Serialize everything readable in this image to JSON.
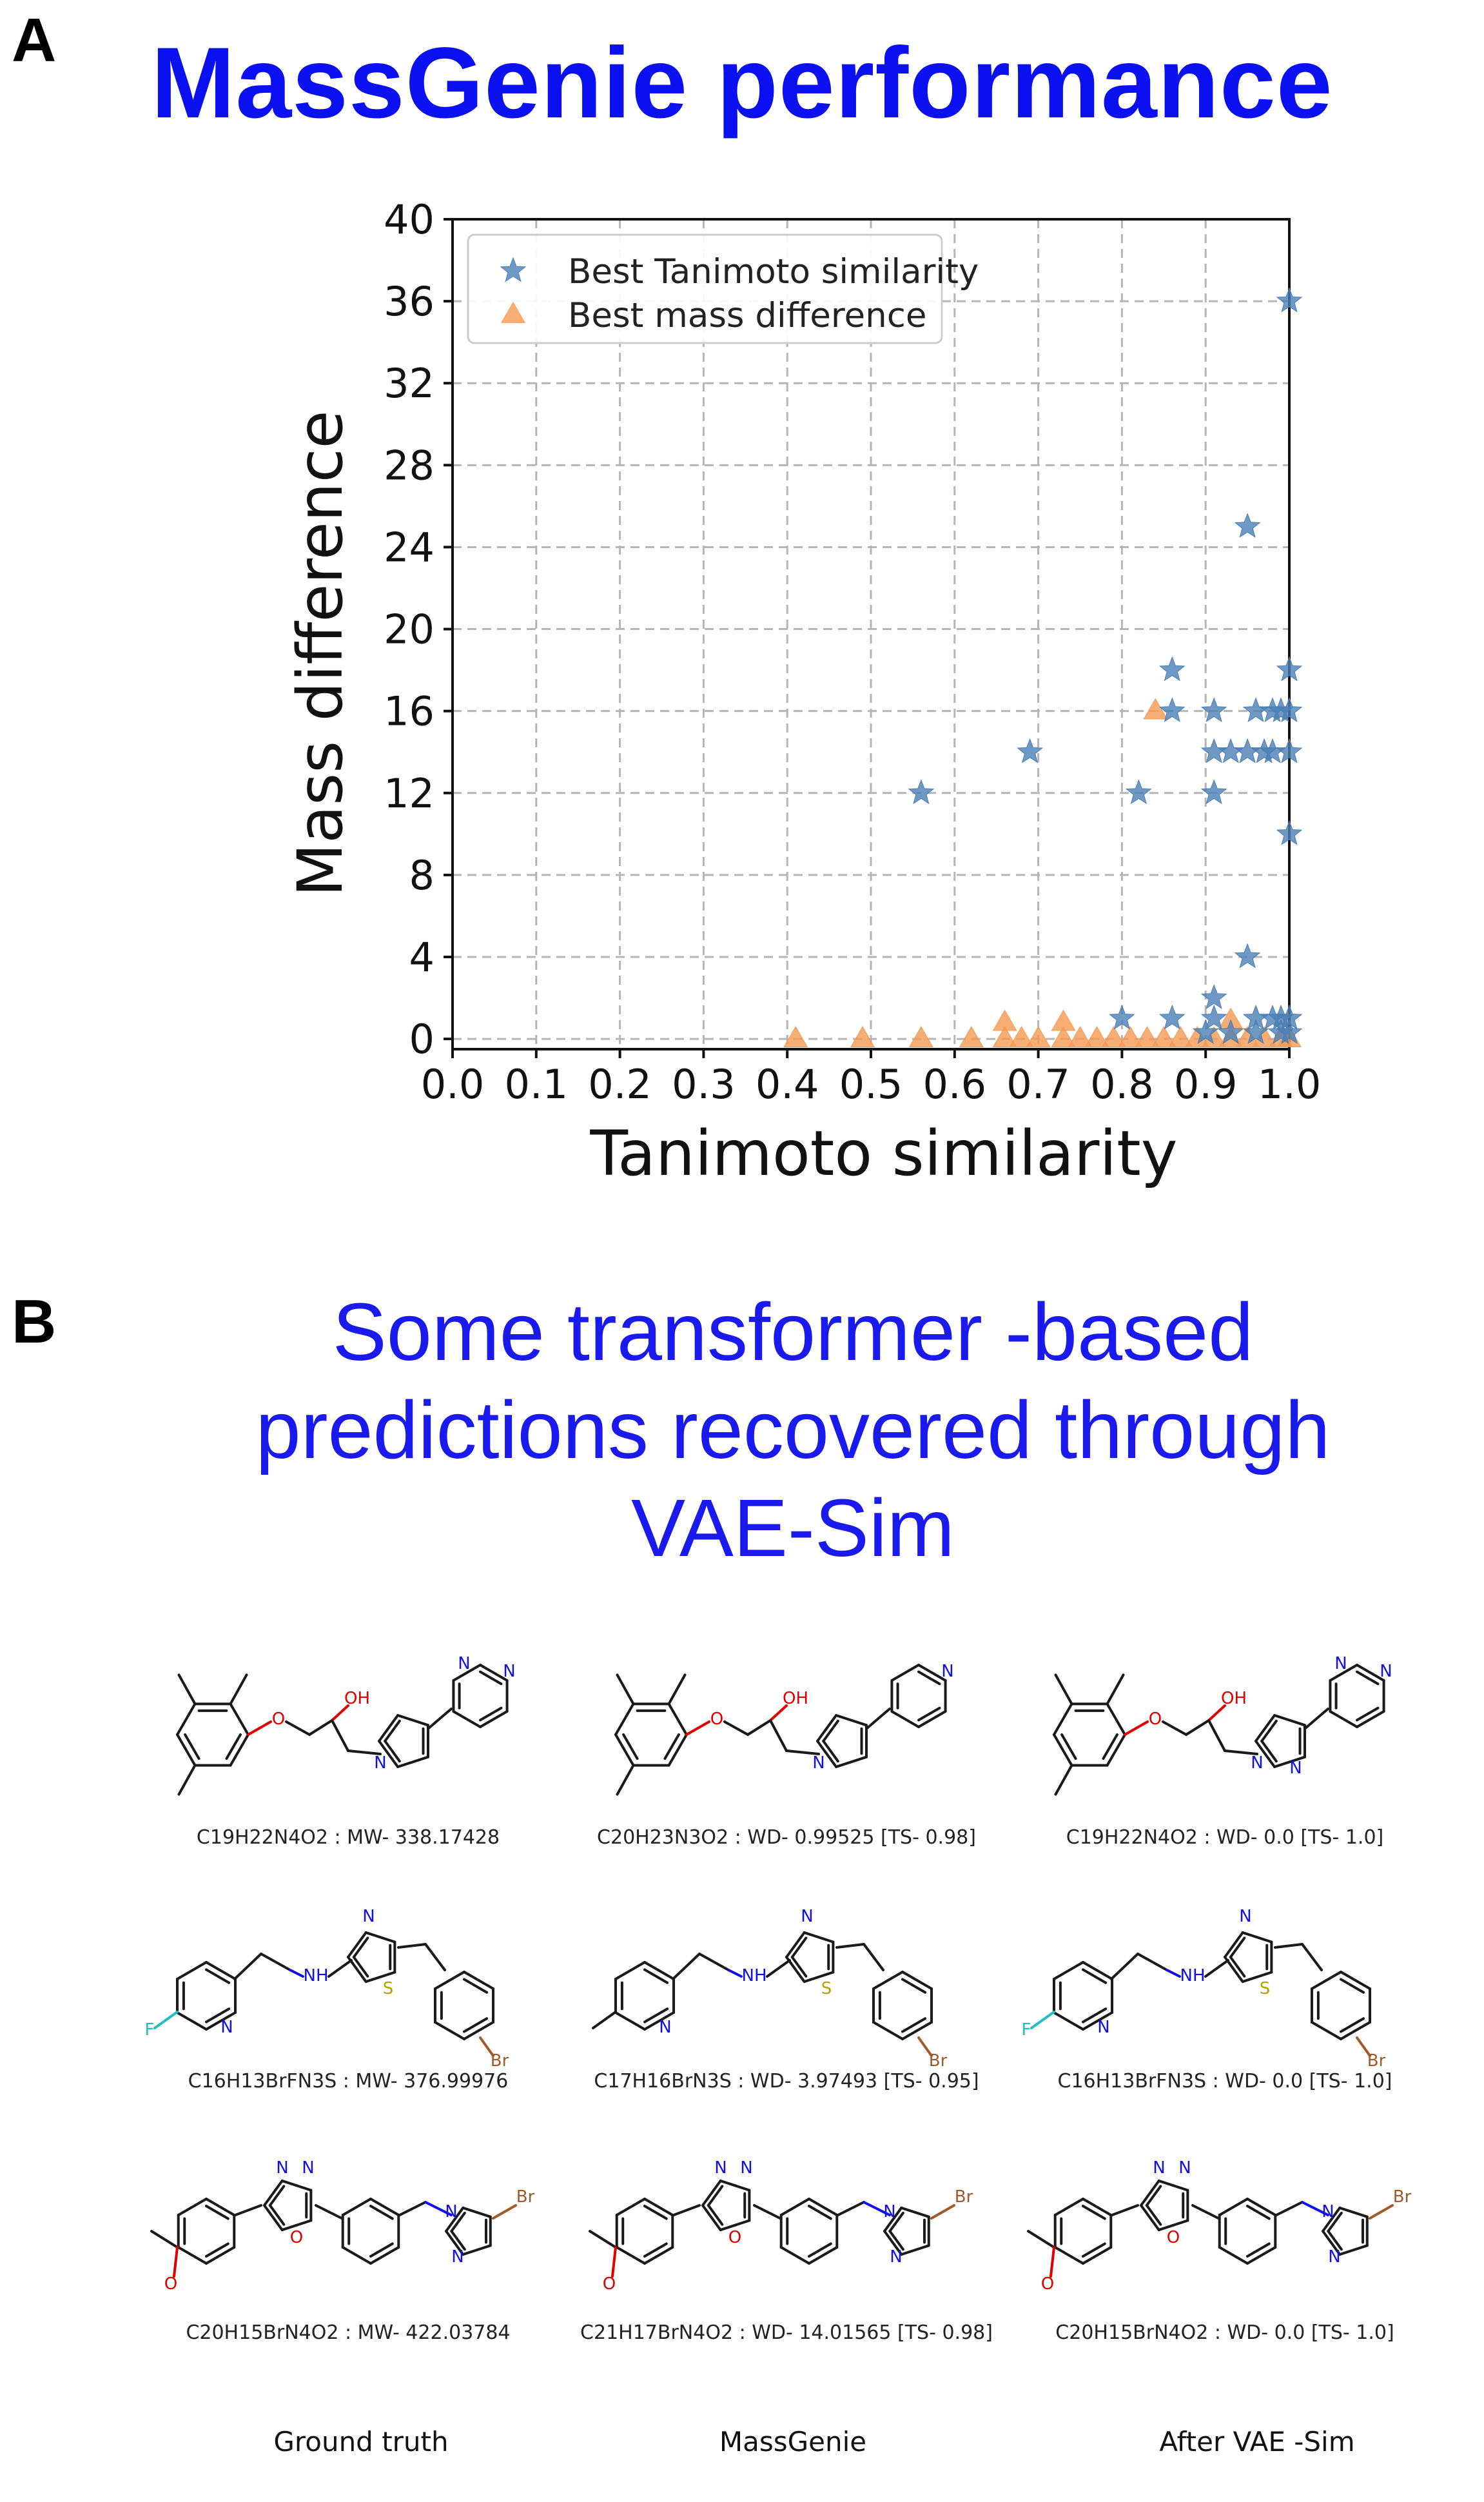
{
  "panel_a": {
    "letter": "A",
    "title": "MassGenie performance"
  },
  "panel_b": {
    "letter": "B",
    "title_lines": [
      "Some transformer -based",
      "predictions recovered through",
      "VAE-Sim"
    ]
  },
  "chart_data": {
    "type": "scatter",
    "title": "",
    "xlabel": "Tanimoto similarity",
    "ylabel": "Mass difference",
    "xlim": [
      0.0,
      1.0
    ],
    "ylim": [
      -0.5,
      40
    ],
    "x_ticks": [
      0.0,
      0.1,
      0.2,
      0.3,
      0.4,
      0.5,
      0.6,
      0.7,
      0.8,
      0.9,
      1.0
    ],
    "x_tick_labels": [
      "0.0",
      "0.1",
      "0.2",
      "0.3",
      "0.4",
      "0.5",
      "0.6",
      "0.7",
      "0.8",
      "0.9",
      "1.0"
    ],
    "y_ticks": [
      0,
      4,
      8,
      12,
      16,
      20,
      24,
      28,
      32,
      36,
      40
    ],
    "y_tick_labels": [
      "0",
      "4",
      "8",
      "12",
      "16",
      "20",
      "24",
      "28",
      "32",
      "36",
      "40"
    ],
    "grid": true,
    "legend_position": "top-left",
    "series": [
      {
        "name": "Best Tanimoto similarity",
        "marker": "star",
        "color": "#4a7fb5",
        "points": [
          [
            1.0,
            36
          ],
          [
            0.95,
            25
          ],
          [
            0.86,
            18
          ],
          [
            1.0,
            18
          ],
          [
            0.86,
            16
          ],
          [
            0.91,
            16
          ],
          [
            0.96,
            16
          ],
          [
            0.98,
            16
          ],
          [
            0.99,
            16
          ],
          [
            1.0,
            16
          ],
          [
            0.69,
            14
          ],
          [
            0.91,
            14
          ],
          [
            0.93,
            14
          ],
          [
            0.95,
            14
          ],
          [
            0.97,
            14
          ],
          [
            0.98,
            14
          ],
          [
            1.0,
            14
          ],
          [
            0.56,
            12
          ],
          [
            0.82,
            12
          ],
          [
            0.91,
            12
          ],
          [
            1.0,
            10
          ],
          [
            0.95,
            4
          ],
          [
            0.91,
            2
          ],
          [
            0.8,
            1
          ],
          [
            0.86,
            1
          ],
          [
            0.91,
            1
          ],
          [
            0.96,
            1
          ],
          [
            0.98,
            1
          ],
          [
            0.99,
            1
          ],
          [
            1.0,
            1
          ],
          [
            0.9,
            0.3
          ],
          [
            0.93,
            0.3
          ],
          [
            0.96,
            0.3
          ],
          [
            0.99,
            0.3
          ],
          [
            1.0,
            0.3
          ]
        ]
      },
      {
        "name": "Best mass difference",
        "marker": "triangle",
        "color": "#f59a52",
        "points": [
          [
            0.84,
            16
          ],
          [
            0.66,
            0.8
          ],
          [
            0.73,
            0.8
          ],
          [
            0.93,
            0.9
          ],
          [
            0.41,
            0
          ],
          [
            0.49,
            0
          ],
          [
            0.56,
            0
          ],
          [
            0.62,
            0
          ],
          [
            0.66,
            0
          ],
          [
            0.68,
            0
          ],
          [
            0.7,
            0
          ],
          [
            0.73,
            0
          ],
          [
            0.75,
            0
          ],
          [
            0.77,
            0
          ],
          [
            0.79,
            0
          ],
          [
            0.81,
            0
          ],
          [
            0.83,
            0
          ],
          [
            0.85,
            0
          ],
          [
            0.87,
            0
          ],
          [
            0.89,
            0
          ],
          [
            0.91,
            0
          ],
          [
            0.93,
            0
          ],
          [
            0.95,
            0
          ],
          [
            0.97,
            0
          ],
          [
            0.99,
            0
          ],
          [
            1.0,
            0
          ]
        ]
      }
    ]
  },
  "molecules": {
    "rows": [
      {
        "structure": "aryl-ether-pyrazole",
        "cells": [
          {
            "caption": "C19H22N4O2 : MW- 338.17428"
          },
          {
            "caption": "C20H23N3O2 : WD- 0.99525 [TS- 0.98]"
          },
          {
            "caption": "C19H22N4O2 : WD- 0.0 [TS- 1.0]"
          }
        ]
      },
      {
        "structure": "pyridyl-thiazole",
        "cells": [
          {
            "caption": "C16H13BrFN3S : MW- 376.99976"
          },
          {
            "caption": "C17H16BrN3S : WD- 3.97493 [TS- 0.95]"
          },
          {
            "caption": "C16H13BrFN3S : WD- 0.0 [TS- 1.0]"
          }
        ]
      },
      {
        "structure": "oxadiazole",
        "cells": [
          {
            "caption": "C20H15BrN4O2 : MW- 422.03784"
          },
          {
            "caption": "C21H17BrN4O2 : WD- 14.01565 [TS- 0.98]"
          },
          {
            "caption": "C20H15BrN4O2 : WD- 0.0 [TS- 1.0]"
          }
        ]
      }
    ],
    "column_labels": [
      "Ground truth",
      "MassGenie",
      "After VAE -Sim"
    ],
    "atom_labels": {
      "oh": "OH",
      "o": "O",
      "n": "N",
      "nh": "NH",
      "s": "S",
      "f": "F",
      "br": "Br"
    },
    "colors": {
      "bond": "#1a1a1a",
      "oxygen": "#e00000",
      "nitrogen": "#1010ee",
      "sulfur": "#b8a000",
      "fluorine": "#20c0c0",
      "bromine": "#a05a2c"
    }
  }
}
